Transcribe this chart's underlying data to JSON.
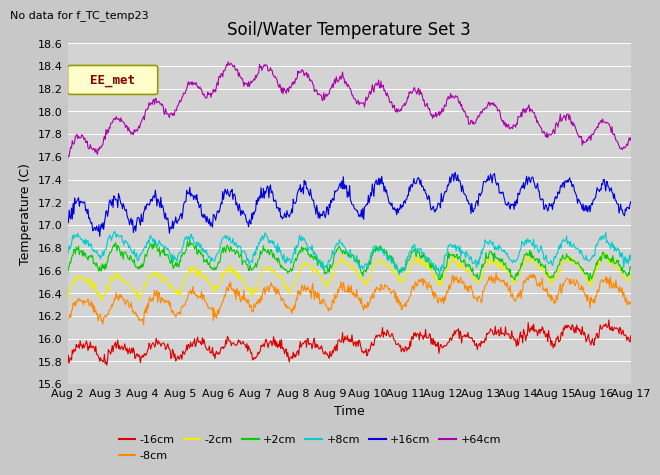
{
  "title": "Soil/Water Temperature Set 3",
  "subtitle": "No data for f_TC_temp23",
  "xlabel": "Time",
  "ylabel": "Temperature (C)",
  "ylim": [
    15.6,
    18.5
  ],
  "xtick_labels": [
    "Aug 2",
    "Aug 3",
    "Aug 4",
    "Aug 5",
    "Aug 6",
    "Aug 7",
    "Aug 8",
    "Aug 9",
    "Aug 10",
    "Aug 11",
    "Aug 12",
    "Aug 13",
    "Aug 14",
    "Aug 15",
    "Aug 16",
    "Aug 17"
  ],
  "plot_bg_color": "#d3d3d3",
  "fig_bg_color": "#c8c8c8",
  "grid_color": "#ffffff",
  "series": [
    {
      "label": "-16cm",
      "color": "#dd0000",
      "base": 15.87,
      "trend": 0.015,
      "amp": 0.06,
      "noise": 0.025,
      "daily_phase": -1.2
    },
    {
      "label": "-8cm",
      "color": "#ff8800",
      "base": 16.27,
      "trend": 0.008,
      "amp": 0.09,
      "noise": 0.025,
      "daily_phase": -1.0
    },
    {
      "label": "-2cm",
      "color": "#eeee00",
      "base": 16.47,
      "trend": 0.008,
      "amp": 0.09,
      "noise": 0.02,
      "daily_phase": -0.8
    },
    {
      "label": "+2cm",
      "color": "#00cc00",
      "base": 16.67,
      "trend": 0.005,
      "amp": 0.09,
      "noise": 0.02,
      "daily_phase": -0.6
    },
    {
      "label": "+8cm",
      "color": "#00cccc",
      "base": 16.81,
      "trend": 0.002,
      "amp": 0.09,
      "noise": 0.02,
      "daily_phase": -0.4
    },
    {
      "label": "+16cm",
      "color": "#0000dd",
      "base": 17.08,
      "trend": 0.003,
      "amp": 0.13,
      "noise": 0.03,
      "daily_phase": -0.3
    },
    {
      "label": "+64cm",
      "color": "#aa00aa",
      "base": 17.63,
      "trend": -0.04,
      "amp": 0.15,
      "noise": 0.025,
      "daily_phase": -0.2
    }
  ],
  "legend_label": "EE_met",
  "legend_box_color": "#ffffcc",
  "legend_box_edge": "#999900",
  "title_fontsize": 12,
  "label_fontsize": 9,
  "tick_fontsize": 8
}
